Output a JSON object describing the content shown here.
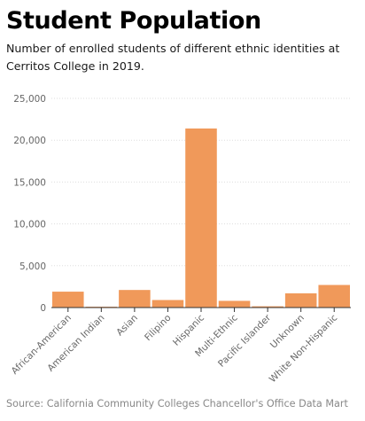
{
  "title": "Student Population",
  "subtitle": "Number of enrolled students of different ethnic identities at Cerritos College in 2019.",
  "source": "Source: California Community Colleges Chancellor's Office Data Mart",
  "colors": {
    "bar": "#f0995a",
    "bar_edge": "#ffffff",
    "grid": "#dddddd",
    "axis": "#333333",
    "tick_text": "#666666"
  },
  "chart_data": {
    "type": "bar",
    "categories": [
      "African-American",
      "American Indian",
      "Asian",
      "Filipino",
      "Hispanic",
      "Multi-Ethnic",
      "Pacific Islander",
      "Unknown",
      "White Non-Hispanic"
    ],
    "values": [
      1900,
      100,
      2100,
      900,
      21400,
      800,
      150,
      1700,
      2700
    ],
    "ylim": [
      0,
      25000
    ],
    "yticks": [
      0,
      5000,
      10000,
      15000,
      20000,
      25000
    ],
    "ytick_labels": [
      "0",
      "5,000",
      "10,000",
      "15,000",
      "20,000",
      "25,000"
    ],
    "xlabel": "",
    "ylabel": "",
    "grid": true,
    "legend": "none"
  }
}
